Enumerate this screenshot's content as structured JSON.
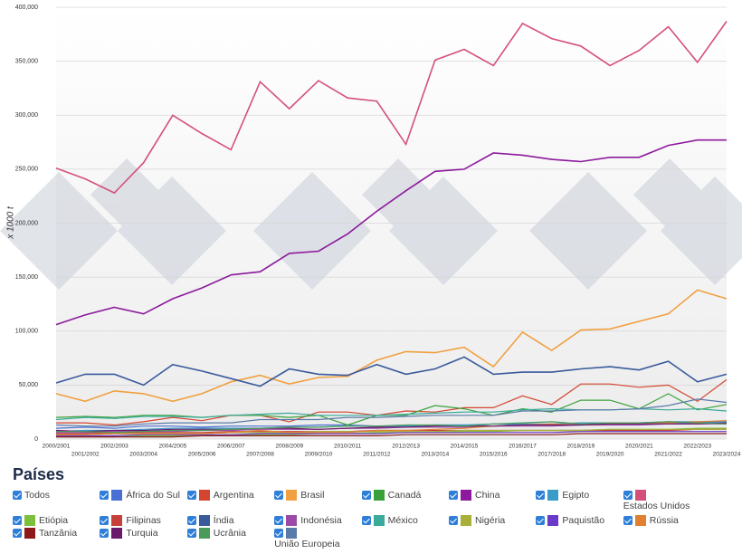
{
  "chart_data": {
    "type": "line",
    "y_label": "x 1000 t",
    "legend_title": "Países",
    "select_all": "Todos",
    "grid": true,
    "ylim": [
      0,
      400000
    ],
    "yticks": [
      {
        "value": 0,
        "label": "0"
      },
      {
        "value": 50000,
        "label": "50,000"
      },
      {
        "value": 100000,
        "label": "100,000"
      },
      {
        "value": 150000,
        "label": "150,000"
      },
      {
        "value": 200000,
        "label": "200,000"
      },
      {
        "value": 250000,
        "label": "250,000"
      },
      {
        "value": 300000,
        "label": "300,000"
      },
      {
        "value": 350000,
        "label": "350,000"
      },
      {
        "value": 400000,
        "label": "400,000"
      }
    ],
    "categories": [
      "2000/2001",
      "2001/2002",
      "2002/2003",
      "2003/2004",
      "2004/2005",
      "2005/2006",
      "2006/2007",
      "2007/2008",
      "2008/2009",
      "2009/2010",
      "2010/2011",
      "2011/2012",
      "2012/2013",
      "2013/2014",
      "2014/2015",
      "2015/2016",
      "2016/2017",
      "2017/2018",
      "2018/2019",
      "2019/2020",
      "2020/2021",
      "2021/2022",
      "2022/2023",
      "2023/2024"
    ],
    "series": [
      {
        "name": "África do Sul",
        "color": "#4a6fd4",
        "values": [
          10000,
          11000,
          10000,
          12000,
          12000,
          11000,
          12000,
          12000,
          12000,
          13000,
          13000,
          12000,
          12000,
          13000,
          13000,
          12000,
          14000,
          13000,
          14000,
          14000,
          14000,
          15000,
          15000,
          16000
        ]
      },
      {
        "name": "Argentina",
        "color": "#d4452f",
        "values": [
          15000,
          15000,
          13000,
          16000,
          20000,
          17000,
          22000,
          22000,
          16000,
          25000,
          25000,
          22000,
          26000,
          25000,
          29000,
          29000,
          40000,
          32000,
          51000,
          51000,
          48000,
          50000,
          35000,
          55000
        ]
      },
      {
        "name": "Brasil",
        "color": "#f0a040",
        "values": [
          42000,
          35000,
          44500,
          42000,
          35000,
          42000,
          53000,
          59000,
          51000,
          57000,
          58000,
          73000,
          81000,
          80000,
          85000,
          67000,
          99000,
          82000,
          101000,
          102000,
          109000,
          116000,
          138000,
          130000
        ]
      },
      {
        "name": "Canadá",
        "color": "#3aa03a",
        "values": [
          20000,
          21000,
          20000,
          22000,
          22000,
          20000,
          22000,
          22000,
          20000,
          22000,
          13000,
          22000,
          22000,
          31000,
          28000,
          22000,
          28000,
          25000,
          36000,
          36000,
          28000,
          42000,
          27000,
          32000
        ]
      },
      {
        "name": "China",
        "color": "#8c1a9c",
        "values": [
          106000,
          115000,
          122000,
          116000,
          130000,
          140000,
          152000,
          155000,
          172000,
          174000,
          190000,
          211000,
          230000,
          248000,
          250000,
          265000,
          263000,
          259000,
          257000,
          261000,
          261000,
          272000,
          277000,
          277000
        ]
      },
      {
        "name": "Egipto",
        "color": "#3a9ac8",
        "values": [
          7000,
          8000,
          8000,
          9000,
          10000,
          10000,
          10000,
          10000,
          11000,
          11000,
          12000,
          12000,
          12000,
          13000,
          13000,
          14000,
          14000,
          14000,
          15000,
          15000,
          15000,
          16000,
          16000,
          16000
        ]
      },
      {
        "name": "Estados Unidos",
        "color": "#d4507a",
        "values": [
          251000,
          241000,
          228000,
          256000,
          300000,
          283000,
          268000,
          331000,
          306000,
          332000,
          316000,
          313000,
          273000,
          351000,
          361000,
          346000,
          385000,
          371000,
          364000,
          346000,
          360000,
          382000,
          349000,
          387000
        ]
      },
      {
        "name": "Etiópia",
        "color": "#7cbf3a",
        "values": [
          2000,
          2000,
          2000,
          3000,
          3000,
          3000,
          4000,
          4000,
          4000,
          5000,
          5000,
          6000,
          6000,
          6000,
          7000,
          7000,
          8000,
          8000,
          8000,
          9000,
          9000,
          9000,
          10000,
          10000
        ]
      },
      {
        "name": "Filipinas",
        "color": "#c8403a",
        "values": [
          5000,
          5000,
          6000,
          6000,
          6000,
          6000,
          7000,
          7000,
          7000,
          7000,
          7000,
          8000,
          8000,
          8000,
          8000,
          8000,
          8000,
          8000,
          8000,
          8000,
          8000,
          8000,
          9000,
          9000
        ]
      },
      {
        "name": "Índia",
        "color": "#3a5a9c",
        "values": [
          52000,
          60000,
          60000,
          50000,
          69000,
          63000,
          56000,
          49000,
          65000,
          60000,
          59000,
          69000,
          60000,
          65000,
          76000,
          60000,
          62000,
          62000,
          65000,
          67000,
          64000,
          72000,
          53000,
          60000
        ]
      },
      {
        "name": "Indonésia",
        "color": "#9c4aa8",
        "values": [
          6000,
          6000,
          7000,
          7000,
          7000,
          8000,
          8000,
          9000,
          9000,
          9000,
          10000,
          10000,
          11000,
          11000,
          11000,
          12000,
          12000,
          12000,
          13000,
          13000,
          13000,
          14000,
          14000,
          14000
        ]
      },
      {
        "name": "México",
        "color": "#3aaa9a",
        "values": [
          18000,
          20000,
          19000,
          21000,
          21000,
          20000,
          22000,
          23000,
          24000,
          22000,
          22000,
          22000,
          23000,
          24000,
          25000,
          25000,
          27000,
          28000,
          27000,
          27000,
          28000,
          27000,
          28000,
          26000
        ]
      },
      {
        "name": "Nigéria",
        "color": "#a8b03a",
        "values": [
          4000,
          4000,
          5000,
          5000,
          5000,
          5000,
          6000,
          6000,
          6000,
          7000,
          7000,
          7000,
          7000,
          7000,
          8000,
          8000,
          8000,
          8000,
          8000,
          9000,
          9000,
          9000,
          9000,
          9000
        ]
      },
      {
        "name": "Paquistão",
        "color": "#6a3ac8",
        "values": [
          3000,
          3000,
          3000,
          4000,
          4000,
          4000,
          4000,
          5000,
          5000,
          5000,
          5000,
          5000,
          6000,
          6000,
          6000,
          6000,
          6000,
          6000,
          7000,
          7000,
          7000,
          7000,
          7000,
          7000
        ]
      },
      {
        "name": "Rússia",
        "color": "#e08030",
        "values": [
          4000,
          4000,
          5000,
          5000,
          5000,
          5000,
          6000,
          8000,
          6000,
          6000,
          6000,
          8000,
          8000,
          9000,
          10000,
          12000,
          13000,
          14000,
          13000,
          14000,
          15000,
          15000,
          16000,
          17000
        ]
      },
      {
        "name": "Tanzânia",
        "color": "#8c1a1a",
        "values": [
          2000,
          2000,
          2000,
          2000,
          2000,
          3000,
          3000,
          3000,
          3000,
          3000,
          3000,
          3000,
          4000,
          4000,
          4000,
          4000,
          4000,
          4000,
          5000,
          5000,
          5000,
          5000,
          5000,
          5000
        ]
      },
      {
        "name": "Turquia",
        "color": "#6a1a6a",
        "values": [
          8000,
          7000,
          8000,
          8000,
          9000,
          9000,
          9000,
          10000,
          10000,
          9000,
          10000,
          11000,
          11000,
          12000,
          12000,
          12000,
          13000,
          13000,
          13000,
          14000,
          14000,
          14000,
          14000,
          15000
        ]
      },
      {
        "name": "Ucrânia",
        "color": "#4a9a5a",
        "values": [
          7000,
          7000,
          6000,
          7000,
          8000,
          8000,
          9000,
          10000,
          11000,
          11000,
          12000,
          12000,
          13000,
          13000,
          12000,
          14000,
          15000,
          16000,
          14000,
          15000,
          15000,
          16000,
          15000,
          14000
        ]
      },
      {
        "name": "União Europeia",
        "color": "#5a7aa8",
        "values": [
          13000,
          12000,
          12000,
          14000,
          15000,
          15000,
          15000,
          18000,
          18000,
          18000,
          20000,
          20000,
          21000,
          22000,
          22000,
          22000,
          26000,
          26000,
          27000,
          27000,
          28000,
          31000,
          37000,
          34000
        ]
      }
    ]
  }
}
